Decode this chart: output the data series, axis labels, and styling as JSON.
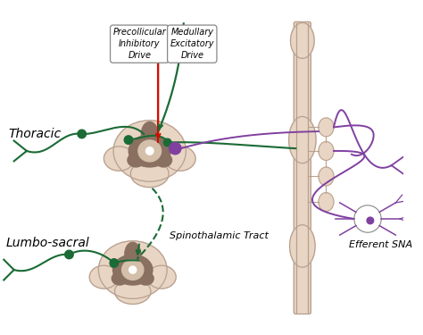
{
  "bg_color": "#ffffff",
  "skin_color": "#e8d5c4",
  "skin_outline": "#b8a090",
  "gray_matter_color": "#b89878",
  "dark_gray_color": "#8a7060",
  "white_matter_color": "#d4bfaa",
  "green_color": "#1a6b35",
  "red_color": "#cc1100",
  "purple_color": "#8040a0",
  "label_thoracic": "Thoracic",
  "label_lumbosacral": "Lumbo-sacral",
  "label_precollicular": "Precollicular\nInhibitory\nDrive",
  "label_medullary": "Medullary\nExcitatory\nDrive",
  "label_spinothalamic": "Spinothalamic Tract",
  "label_efferent": "Efferent SNA",
  "figsize": [
    4.74,
    3.75
  ],
  "dpi": 100
}
